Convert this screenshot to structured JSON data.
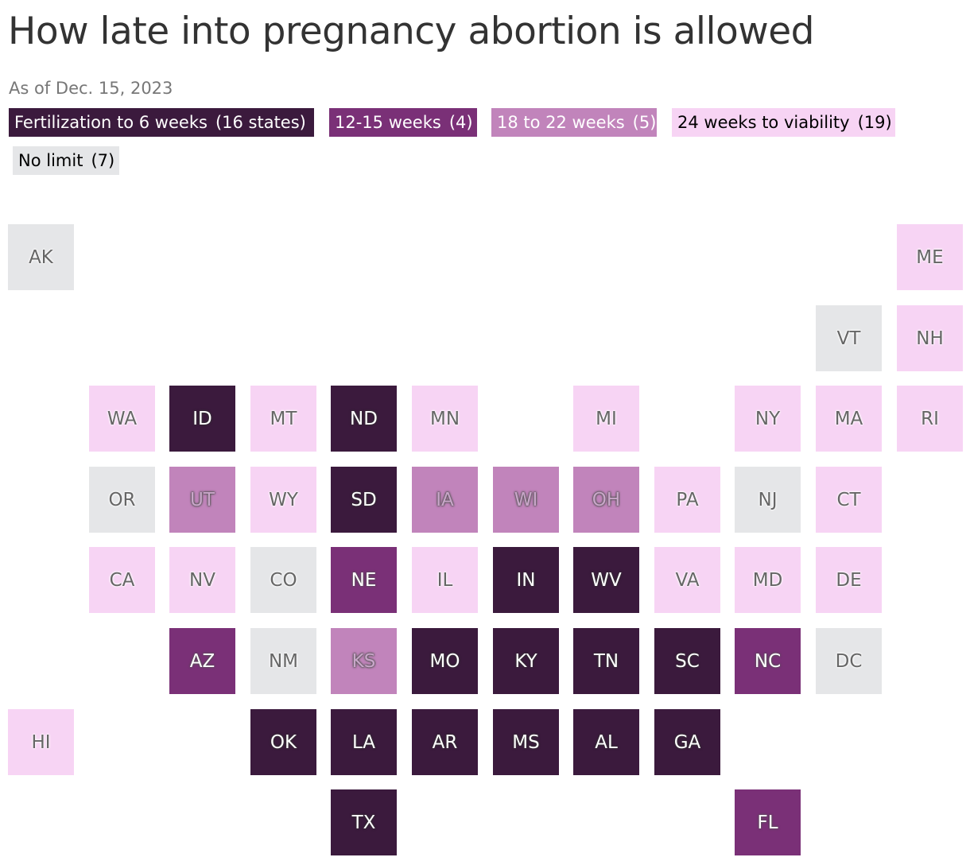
{
  "title": "How late into pregnancy abortion is allowed",
  "subtitle": "As of Dec. 15, 2023",
  "colors": {
    "six_weeks": "#3b1a3d",
    "twelve_fifteen": "#7a3077",
    "eighteen_22": "#c184bb",
    "viability": "#f7d4f4",
    "no_limit": "#e5e6e8"
  },
  "legend": [
    {
      "id": "six_weeks",
      "label": "Fertilization to 6 weeks",
      "count": "(16 states)"
    },
    {
      "id": "twelve_fifteen",
      "label": "12-15 weeks",
      "count": "(4)"
    },
    {
      "id": "eighteen_22",
      "label": "18 to 22 weeks",
      "count": "(5)"
    },
    {
      "id": "viability",
      "label": "24 weeks to viability",
      "count": "(19)"
    },
    {
      "id": "no_limit",
      "label": "No limit",
      "count": "(7)"
    }
  ],
  "states": [
    {
      "abbr": "AK",
      "category": "no_limit"
    },
    {
      "abbr": "ME",
      "category": "viability"
    },
    {
      "abbr": "VT",
      "category": "no_limit"
    },
    {
      "abbr": "NH",
      "category": "viability"
    },
    {
      "abbr": "WA",
      "category": "viability"
    },
    {
      "abbr": "ID",
      "category": "six_weeks"
    },
    {
      "abbr": "MT",
      "category": "viability"
    },
    {
      "abbr": "ND",
      "category": "six_weeks"
    },
    {
      "abbr": "MN",
      "category": "viability"
    },
    {
      "abbr": "MI",
      "category": "viability"
    },
    {
      "abbr": "NY",
      "category": "viability"
    },
    {
      "abbr": "MA",
      "category": "viability"
    },
    {
      "abbr": "RI",
      "category": "viability"
    },
    {
      "abbr": "OR",
      "category": "no_limit"
    },
    {
      "abbr": "UT",
      "category": "eighteen_22"
    },
    {
      "abbr": "WY",
      "category": "viability"
    },
    {
      "abbr": "SD",
      "category": "six_weeks"
    },
    {
      "abbr": "IA",
      "category": "eighteen_22"
    },
    {
      "abbr": "WI",
      "category": "eighteen_22"
    },
    {
      "abbr": "OH",
      "category": "eighteen_22"
    },
    {
      "abbr": "PA",
      "category": "viability"
    },
    {
      "abbr": "NJ",
      "category": "no_limit"
    },
    {
      "abbr": "CT",
      "category": "viability"
    },
    {
      "abbr": "CA",
      "category": "viability"
    },
    {
      "abbr": "NV",
      "category": "viability"
    },
    {
      "abbr": "CO",
      "category": "no_limit"
    },
    {
      "abbr": "NE",
      "category": "twelve_fifteen"
    },
    {
      "abbr": "IL",
      "category": "viability"
    },
    {
      "abbr": "IN",
      "category": "six_weeks"
    },
    {
      "abbr": "WV",
      "category": "six_weeks"
    },
    {
      "abbr": "VA",
      "category": "viability"
    },
    {
      "abbr": "MD",
      "category": "viability"
    },
    {
      "abbr": "DE",
      "category": "viability"
    },
    {
      "abbr": "AZ",
      "category": "twelve_fifteen"
    },
    {
      "abbr": "NM",
      "category": "no_limit"
    },
    {
      "abbr": "KS",
      "category": "eighteen_22"
    },
    {
      "abbr": "MO",
      "category": "six_weeks"
    },
    {
      "abbr": "KY",
      "category": "six_weeks"
    },
    {
      "abbr": "TN",
      "category": "six_weeks"
    },
    {
      "abbr": "SC",
      "category": "six_weeks"
    },
    {
      "abbr": "NC",
      "category": "twelve_fifteen"
    },
    {
      "abbr": "DC",
      "category": "no_limit"
    },
    {
      "abbr": "HI",
      "category": "viability"
    },
    {
      "abbr": "OK",
      "category": "six_weeks"
    },
    {
      "abbr": "LA",
      "category": "six_weeks"
    },
    {
      "abbr": "AR",
      "category": "six_weeks"
    },
    {
      "abbr": "MS",
      "category": "six_weeks"
    },
    {
      "abbr": "AL",
      "category": "six_weeks"
    },
    {
      "abbr": "GA",
      "category": "six_weeks"
    },
    {
      "abbr": "TX",
      "category": "six_weeks"
    },
    {
      "abbr": "FL",
      "category": "twelve_fifteen"
    }
  ]
}
